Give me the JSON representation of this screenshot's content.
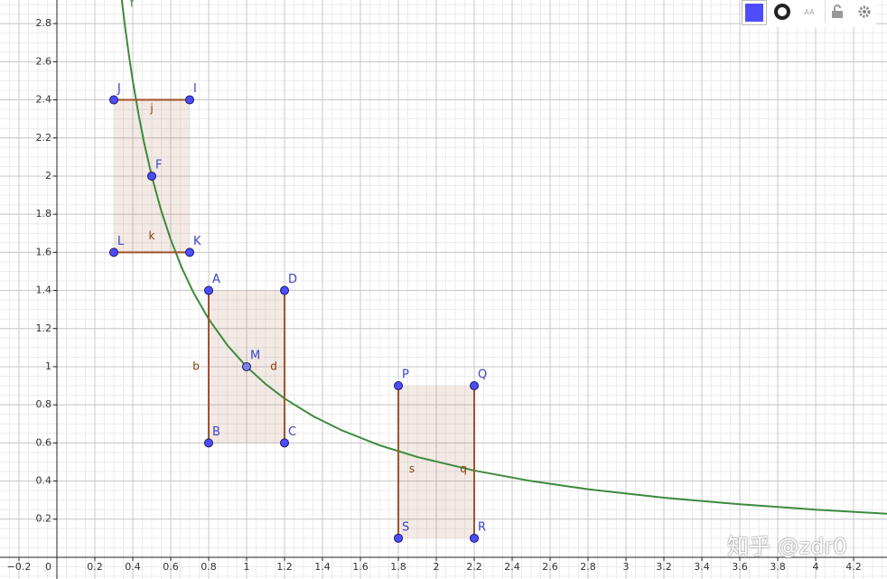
{
  "graphics": {
    "xlim": [
      -0.3,
      4.376
    ],
    "ylim": [
      -0.114,
      2.924
    ],
    "xticks": [
      {
        "value": -0.2,
        "label": "−0.2"
      },
      0.2,
      0.4,
      0.6,
      0.8,
      1,
      1.2,
      1.4,
      1.6,
      1.8,
      2,
      2.2,
      2.4,
      2.6,
      2.8,
      3,
      3.2,
      3.4,
      3.6,
      3.8,
      4,
      4.2
    ],
    "yticks": [
      0.2,
      0.4,
      0.6,
      0.8,
      1,
      1.2,
      1.4,
      1.6,
      1.8,
      2,
      2.2,
      2.4,
      2.6,
      2.8
    ],
    "origin_label": "0",
    "points": [
      {
        "label": "J",
        "x": 0.3,
        "y": 2.4
      },
      {
        "label": "I",
        "x": 0.7,
        "y": 2.4
      },
      {
        "label": "F",
        "x": 0.5,
        "y": 2
      },
      {
        "label": "L",
        "x": 0.3,
        "y": 1.6
      },
      {
        "label": "K",
        "x": 0.7,
        "y": 1.6
      },
      {
        "label": "A",
        "x": 0.8,
        "y": 1.4
      },
      {
        "label": "D",
        "x": 1.2,
        "y": 1.4
      },
      {
        "label": "M",
        "x": 1,
        "y": 1
      },
      {
        "label": "B",
        "x": 0.8,
        "y": 0.6
      },
      {
        "label": "C",
        "x": 1.2,
        "y": 0.6
      },
      {
        "label": "P",
        "x": 1.8,
        "y": 0.9
      },
      {
        "label": "Q",
        "x": 2.2,
        "y": 0.9
      },
      {
        "label": "S",
        "x": 1.8,
        "y": 0.1
      },
      {
        "label": "R",
        "x": 2.2,
        "y": 0.1
      }
    ],
    "polygons": [
      [
        "J",
        "I",
        "K",
        "L"
      ],
      [
        "A",
        "D",
        "C",
        "B"
      ],
      [
        "P",
        "Q",
        "R",
        "S"
      ]
    ],
    "segments": [
      {
        "label": "j",
        "from": "J",
        "to": "I"
      },
      {
        "label": "k",
        "from": "L",
        "to": "K"
      },
      {
        "label": "b",
        "from": "A",
        "to": "B"
      },
      {
        "label": "d",
        "from": "D",
        "to": "C"
      },
      {
        "label": "s",
        "from": "P",
        "to": "S"
      },
      {
        "label": "q",
        "from": "Q",
        "to": "R"
      }
    ],
    "curve": {
      "label": "f",
      "color": "#3d8a3d",
      "x": [
        0.342,
        0.36,
        0.38,
        0.4,
        0.43,
        0.46,
        0.5,
        0.55,
        0.6,
        0.66,
        0.72,
        0.8,
        0.9,
        1,
        1.1,
        1.2,
        1.35,
        1.5,
        1.7,
        1.9,
        2.2,
        2.5,
        2.8,
        3.2,
        3.6,
        4,
        4.4
      ],
      "y": [
        2.924,
        2.778,
        2.632,
        2.5,
        2.326,
        2.174,
        2,
        1.818,
        1.667,
        1.515,
        1.389,
        1.25,
        1.111,
        1,
        0.909,
        0.833,
        0.741,
        0.667,
        0.588,
        0.526,
        0.455,
        0.4,
        0.357,
        0.3125,
        0.278,
        0.25,
        0.227
      ]
    }
  },
  "toolbar": {
    "text_style": "AA"
  },
  "watermark": "知乎 @zdr0"
}
